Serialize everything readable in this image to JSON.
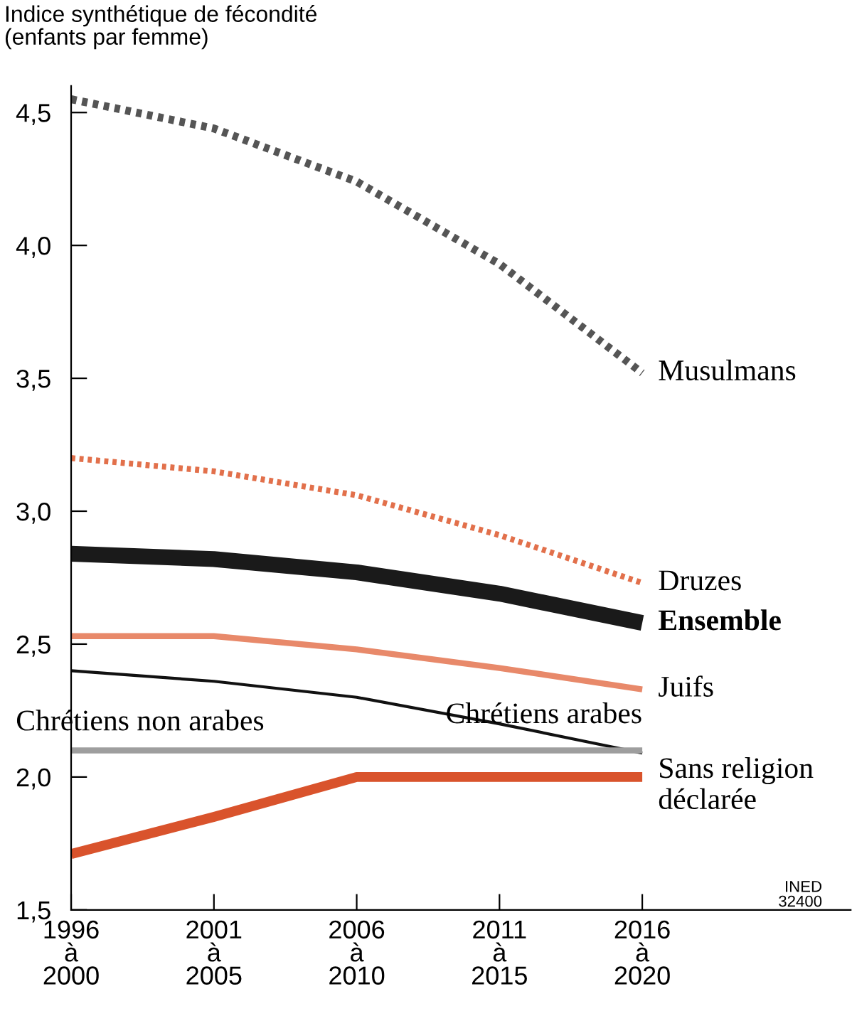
{
  "chart_data": {
    "type": "line",
    "ylabel": "Indice synthétique de fécondité\n(enfants par femme)",
    "categories": [
      "1996\nà\n2000",
      "2001\nà\n2005",
      "2006\nà\n2010",
      "2011\nà\n2015",
      "2016\nà\n2020"
    ],
    "series": [
      {
        "name": "Musulmans",
        "color": "#555555",
        "line_style": "dotted",
        "values": [
          4.55,
          4.44,
          4.24,
          3.93,
          3.52
        ]
      },
      {
        "name": "Druzes",
        "color": "#e2704b",
        "line_style": "dotted",
        "values": [
          3.2,
          3.15,
          3.06,
          2.91,
          2.73
        ]
      },
      {
        "name": "Ensemble",
        "color": "#1a1a1a",
        "line_style": "solid",
        "values": [
          2.84,
          2.82,
          2.77,
          2.69,
          2.58
        ]
      },
      {
        "name": "Juifs",
        "color": "#e8896a",
        "line_style": "solid",
        "values": [
          2.53,
          2.53,
          2.48,
          2.41,
          2.33
        ]
      },
      {
        "name": "Chrétiens arabes",
        "color": "#111111",
        "line_style": "solid",
        "values": [
          2.4,
          2.36,
          2.3,
          2.2,
          2.09
        ]
      },
      {
        "name": "Chrétiens non arabes",
        "color": "#9e9e9e",
        "line_style": "solid",
        "values": [
          2.1,
          2.1,
          2.1,
          2.1,
          2.1
        ]
      },
      {
        "name": "Sans religion\ndéclarée",
        "color": "#d9532c",
        "line_style": "solid",
        "values": [
          1.71,
          1.85,
          2.0,
          2.0,
          2.0
        ]
      }
    ],
    "ylim": [
      1.5,
      4.6
    ],
    "yticks": [
      {
        "value": 1.5,
        "label": "1,5"
      },
      {
        "value": 2.0,
        "label": "2,0"
      },
      {
        "value": 2.5,
        "label": "2,5"
      },
      {
        "value": 3.0,
        "label": "3,0"
      },
      {
        "value": 3.5,
        "label": "3,5"
      },
      {
        "value": 4.0,
        "label": "4,0"
      },
      {
        "value": 4.5,
        "label": "4,5"
      }
    ],
    "grid": false,
    "legend": false,
    "annotations": [
      "INED\n32400"
    ]
  }
}
